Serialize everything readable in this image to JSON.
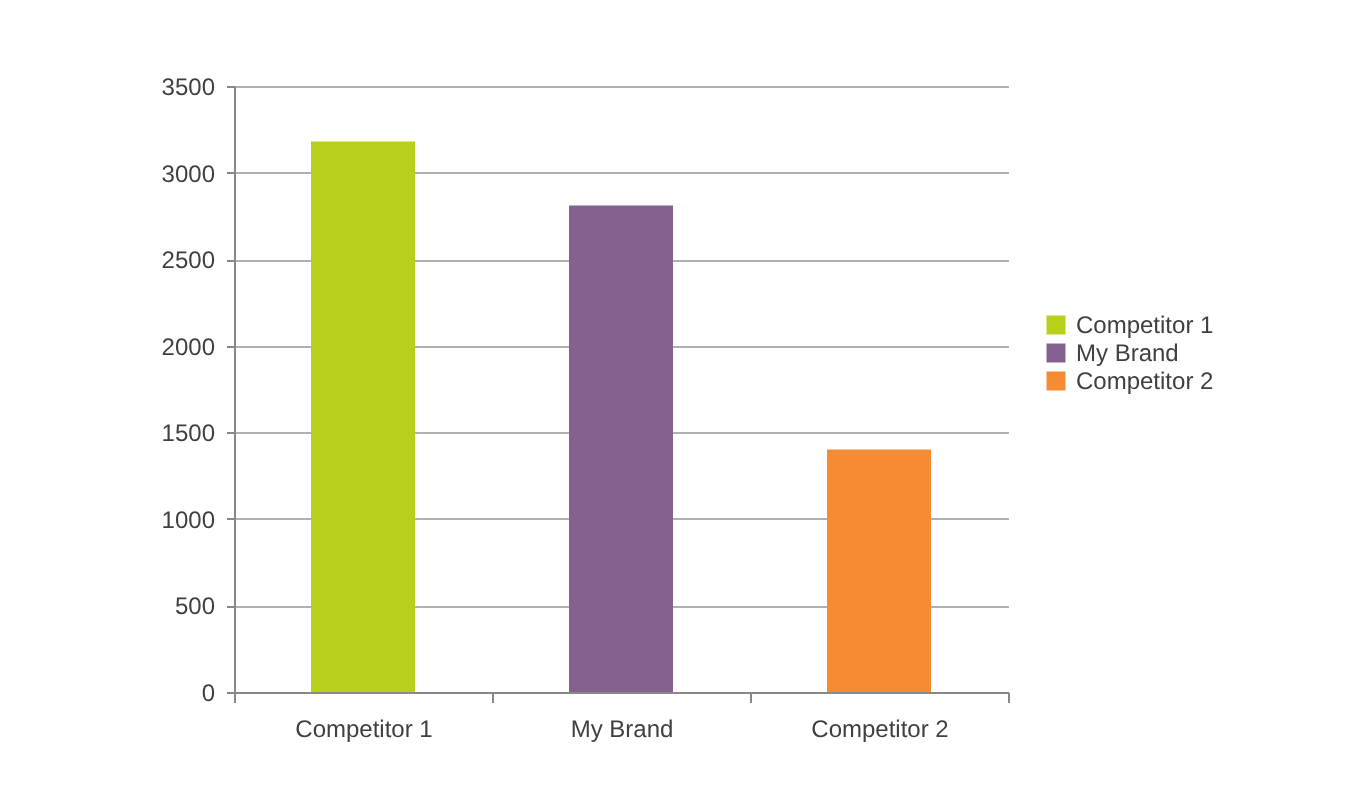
{
  "chart_data": {
    "type": "bar",
    "stacked": true,
    "categories": [
      "Competitor 1",
      "My Brand",
      "Competitor 2"
    ],
    "series": [
      {
        "name": "Competitor 1",
        "color": "#b8cf1b",
        "values": [
          3180,
          null,
          null
        ]
      },
      {
        "name": "My Brand",
        "color": "#84618e",
        "values": [
          null,
          2810,
          null
        ]
      },
      {
        "name": "Competitor 2",
        "color": "#f58b33",
        "values": [
          null,
          null,
          1400
        ]
      }
    ],
    "ylim": [
      0,
      3500
    ],
    "yticks": [
      0,
      500,
      1000,
      1500,
      2000,
      2500,
      3000,
      3500
    ],
    "grid": "y",
    "legend": "right"
  }
}
